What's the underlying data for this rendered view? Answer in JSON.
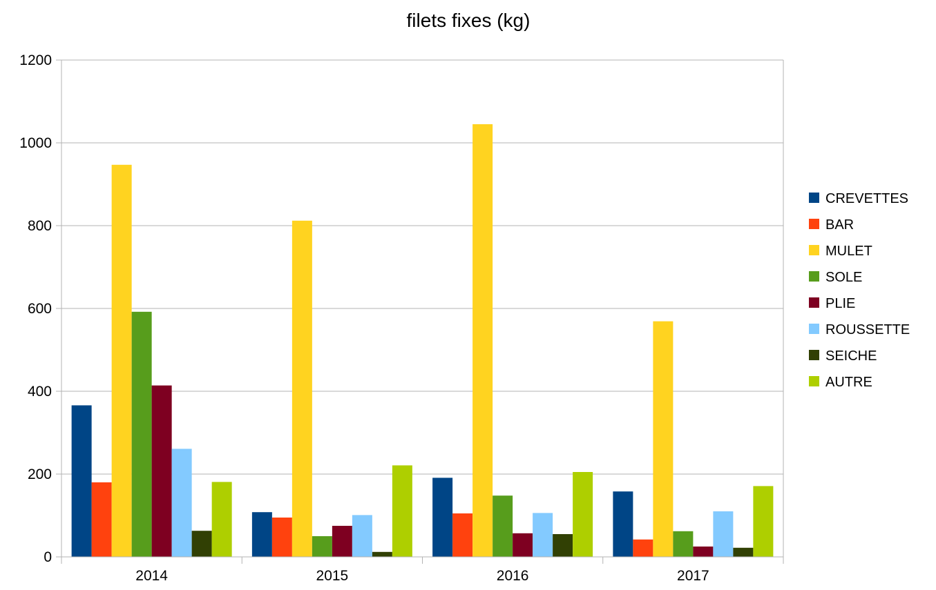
{
  "chart_data": {
    "type": "bar",
    "title": "filets fixes (kg)",
    "xlabel": "",
    "ylabel": "",
    "categories": [
      "2014",
      "2015",
      "2016",
      "2017"
    ],
    "ylim": [
      0,
      1200
    ],
    "yticks": [
      0,
      200,
      400,
      600,
      800,
      1000,
      1200
    ],
    "grid": true,
    "legend_position": "right",
    "series": [
      {
        "name": "CREVETTES",
        "color": "#004586",
        "values": [
          366,
          108,
          191,
          158
        ]
      },
      {
        "name": "BAR",
        "color": "#ff420e",
        "values": [
          180,
          95,
          105,
          42
        ]
      },
      {
        "name": "MULET",
        "color": "#ffd320",
        "values": [
          947,
          812,
          1045,
          569
        ]
      },
      {
        "name": "SOLE",
        "color": "#579d1c",
        "values": [
          592,
          50,
          148,
          62
        ]
      },
      {
        "name": "PLIE",
        "color": "#7e0021",
        "values": [
          414,
          75,
          57,
          25
        ]
      },
      {
        "name": "ROUSSETTE",
        "color": "#83caff",
        "values": [
          261,
          101,
          106,
          110
        ]
      },
      {
        "name": "SEICHE",
        "color": "#314004",
        "values": [
          63,
          12,
          55,
          22
        ]
      },
      {
        "name": "AUTRE",
        "color": "#aecf00",
        "values": [
          181,
          221,
          205,
          171
        ]
      }
    ]
  }
}
